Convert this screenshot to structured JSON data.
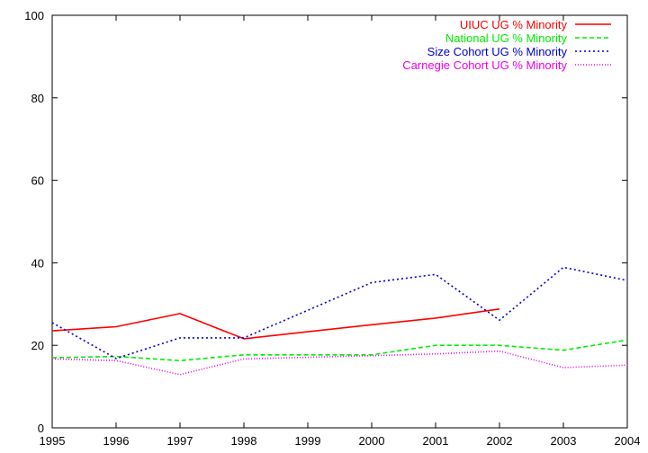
{
  "chart_data": {
    "type": "line",
    "title": "",
    "xlabel": "",
    "ylabel": "",
    "xlim": [
      1995,
      2004
    ],
    "ylim": [
      0,
      100
    ],
    "x_ticks": [
      "1995",
      "1996",
      "1997",
      "1998",
      "1999",
      "2000",
      "2001",
      "2002",
      "2003",
      "2004"
    ],
    "y_ticks": [
      "0",
      "20",
      "40",
      "60",
      "80",
      "100"
    ],
    "grid": false,
    "legend_position": "top-right",
    "series": [
      {
        "name": "UIUC UG % Minority",
        "color": "#ff0000",
        "dash": "solid",
        "x": [
          1995,
          1996,
          1997,
          1998,
          1999,
          2000,
          2001,
          2002
        ],
        "values": [
          23.5,
          24.5,
          27.7,
          21.6,
          23.3,
          25.0,
          26.6,
          28.8
        ]
      },
      {
        "name": "National UG % Minority",
        "color": "#00ee00",
        "dash": "dashed",
        "x": [
          1995,
          1996,
          1997,
          1998,
          1999,
          2000,
          2001,
          2002,
          2003,
          2004
        ],
        "values": [
          17.0,
          17.3,
          16.3,
          17.7,
          17.7,
          17.7,
          20.0,
          20.0,
          18.8,
          21.3
        ]
      },
      {
        "name": "Size Cohort UG % Minority",
        "color": "#0000cc",
        "dash": "dotted",
        "x": [
          1995,
          1996,
          1997,
          1998,
          1999,
          2000,
          2001,
          2002,
          2003,
          2004
        ],
        "values": [
          25.5,
          16.8,
          21.8,
          21.8,
          28.5,
          35.2,
          37.2,
          26.1,
          38.9,
          35.7
        ]
      },
      {
        "name": "Carnegie Cohort UG % Minority",
        "color": "#ee00ee",
        "dash": "fine-dotted",
        "x": [
          1995,
          1996,
          1997,
          1998,
          1999,
          2000,
          2001,
          2002,
          2003,
          2004
        ],
        "values": [
          16.7,
          16.3,
          12.9,
          16.7,
          17.1,
          17.5,
          17.9,
          18.6,
          14.6,
          15.2
        ]
      }
    ]
  }
}
